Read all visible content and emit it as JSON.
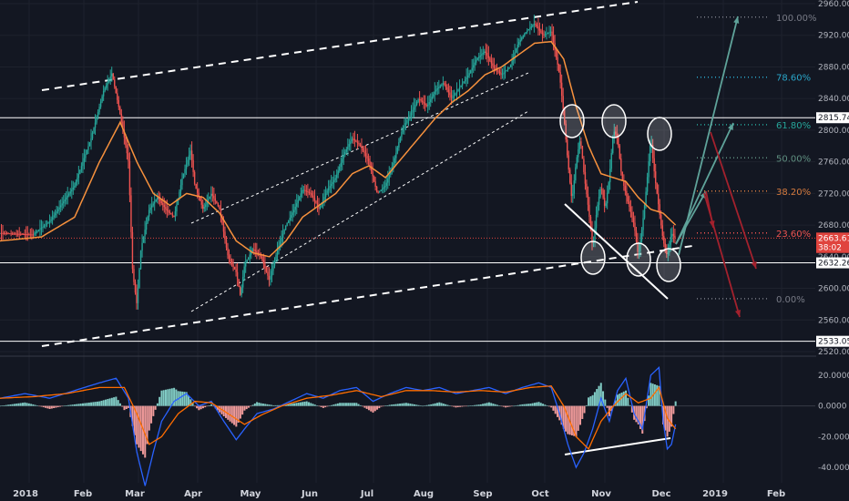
{
  "colors": {
    "background": "#131722",
    "up": "#26a69a",
    "down": "#ef5350",
    "ma": "#f7913d",
    "hline": "#ffffff",
    "price_line": "#e0443e",
    "macd": "#2962ff",
    "signal": "#ff6d00"
  },
  "chart_data": [
    {
      "type": "line",
      "title": "",
      "description": "Daily price chart with orange moving average, ascending channel, horizontal levels, Fibonacci retracement levels and projection arrows",
      "x_tick_labels": [
        "2018",
        "Feb",
        "Mar",
        "Apr",
        "May",
        "Jun",
        "Jul",
        "Aug",
        "Sep",
        "Oct",
        "Nov",
        "Dec",
        "2019",
        "Feb"
      ],
      "y_tick_labels": [
        "2960.00",
        "2920.00",
        "2880.00",
        "2840.00",
        "2800.00",
        "2760.00",
        "2720.00",
        "2680.00",
        "2640.00",
        "2600.00",
        "2560.00",
        "2520.00"
      ],
      "ylim": [
        2520,
        2960
      ],
      "price_path": [
        [
          0,
          2670
        ],
        [
          8,
          2668
        ],
        [
          12,
          2685
        ],
        [
          18,
          2730
        ],
        [
          22,
          2790
        ],
        [
          25,
          2850
        ],
        [
          27,
          2872
        ],
        [
          29,
          2820
        ],
        [
          31,
          2760
        ],
        [
          32,
          2620
        ],
        [
          33,
          2580
        ],
        [
          34,
          2650
        ],
        [
          36,
          2700
        ],
        [
          38,
          2715
        ],
        [
          40,
          2700
        ],
        [
          42,
          2690
        ],
        [
          44,
          2740
        ],
        [
          46,
          2775
        ],
        [
          47,
          2730
        ],
        [
          49,
          2700
        ],
        [
          51,
          2720
        ],
        [
          53,
          2700
        ],
        [
          55,
          2640
        ],
        [
          57,
          2620
        ],
        [
          58,
          2590
        ],
        [
          59,
          2630
        ],
        [
          61,
          2650
        ],
        [
          63,
          2640
        ],
        [
          65,
          2610
        ],
        [
          67,
          2650
        ],
        [
          69,
          2680
        ],
        [
          71,
          2700
        ],
        [
          73,
          2725
        ],
        [
          75,
          2720
        ],
        [
          77,
          2700
        ],
        [
          79,
          2725
        ],
        [
          81,
          2740
        ],
        [
          83,
          2770
        ],
        [
          85,
          2790
        ],
        [
          87,
          2780
        ],
        [
          89,
          2760
        ],
        [
          91,
          2720
        ],
        [
          93,
          2730
        ],
        [
          95,
          2760
        ],
        [
          97,
          2800
        ],
        [
          99,
          2820
        ],
        [
          101,
          2840
        ],
        [
          103,
          2830
        ],
        [
          105,
          2850
        ],
        [
          107,
          2860
        ],
        [
          109,
          2840
        ],
        [
          111,
          2855
        ],
        [
          113,
          2870
        ],
        [
          115,
          2890
        ],
        [
          117,
          2900
        ],
        [
          119,
          2880
        ],
        [
          121,
          2870
        ],
        [
          123,
          2880
        ],
        [
          125,
          2910
        ],
        [
          127,
          2925
        ],
        [
          129,
          2935
        ],
        [
          131,
          2920
        ],
        [
          133,
          2925
        ],
        [
          135,
          2870
        ],
        [
          136,
          2820
        ],
        [
          137,
          2760
        ],
        [
          138,
          2710
        ],
        [
          139,
          2760
        ],
        [
          140,
          2790
        ],
        [
          141,
          2740
        ],
        [
          142,
          2700
        ],
        [
          143,
          2650
        ],
        [
          144,
          2700
        ],
        [
          145,
          2730
        ],
        [
          146,
          2700
        ],
        [
          147,
          2740
        ],
        [
          148,
          2800
        ],
        [
          149,
          2790
        ],
        [
          150,
          2740
        ],
        [
          151,
          2720
        ],
        [
          152,
          2700
        ],
        [
          153,
          2680
        ],
        [
          154,
          2640
        ],
        [
          155,
          2680
        ],
        [
          156,
          2730
        ],
        [
          157,
          2790
        ],
        [
          158,
          2740
        ],
        [
          159,
          2700
        ],
        [
          160,
          2660
        ],
        [
          161,
          2640
        ],
        [
          162,
          2670
        ],
        [
          163,
          2663
        ]
      ],
      "ma_path": [
        [
          0,
          2660
        ],
        [
          10,
          2665
        ],
        [
          18,
          2690
        ],
        [
          24,
          2760
        ],
        [
          29,
          2810
        ],
        [
          33,
          2760
        ],
        [
          37,
          2720
        ],
        [
          41,
          2705
        ],
        [
          45,
          2720
        ],
        [
          49,
          2715
        ],
        [
          53,
          2695
        ],
        [
          57,
          2660
        ],
        [
          61,
          2645
        ],
        [
          65,
          2640
        ],
        [
          69,
          2660
        ],
        [
          73,
          2690
        ],
        [
          77,
          2705
        ],
        [
          81,
          2720
        ],
        [
          85,
          2745
        ],
        [
          89,
          2755
        ],
        [
          93,
          2740
        ],
        [
          97,
          2765
        ],
        [
          101,
          2790
        ],
        [
          105,
          2815
        ],
        [
          109,
          2835
        ],
        [
          113,
          2850
        ],
        [
          117,
          2870
        ],
        [
          121,
          2880
        ],
        [
          125,
          2895
        ],
        [
          129,
          2910
        ],
        [
          133,
          2912
        ],
        [
          136,
          2890
        ],
        [
          139,
          2830
        ],
        [
          142,
          2780
        ],
        [
          145,
          2745
        ],
        [
          148,
          2740
        ],
        [
          151,
          2735
        ],
        [
          154,
          2715
        ],
        [
          157,
          2700
        ],
        [
          160,
          2695
        ],
        [
          163,
          2680
        ]
      ],
      "horizontal_levels": [
        2815.74,
        2632.26,
        2533.05
      ],
      "price_line": 2663.61,
      "price_labels": [
        "2815.74",
        "2663.61",
        "38:02",
        "2632.26",
        "2533.05"
      ],
      "fibonacci": [
        {
          "ratio": "100.00%",
          "value": 2943,
          "color": "#787b86"
        },
        {
          "ratio": "78.60%",
          "value": 2867,
          "color": "#2aa6c9"
        },
        {
          "ratio": "61.80%",
          "value": 2807,
          "color": "#26a69a"
        },
        {
          "ratio": "50.00%",
          "value": 2765,
          "color": "#5f8f80"
        },
        {
          "ratio": "38.20%",
          "value": 2723,
          "color": "#d67b3f"
        },
        {
          "ratio": "23.60%",
          "value": 2670,
          "color": "#ef5350"
        },
        {
          "ratio": "0.00%",
          "value": 2587,
          "color": "#787b86"
        }
      ]
    },
    {
      "type": "line",
      "title": "",
      "description": "MACD oscillator with histogram",
      "y_tick_labels": [
        "20.0000",
        "0.0000",
        "-20.0000",
        "-40.0000"
      ],
      "ylim": [
        -50,
        30
      ],
      "macd_path": [
        [
          0,
          5
        ],
        [
          6,
          8
        ],
        [
          12,
          5
        ],
        [
          18,
          10
        ],
        [
          24,
          15
        ],
        [
          28,
          18
        ],
        [
          31,
          5
        ],
        [
          33,
          -30
        ],
        [
          35,
          -52
        ],
        [
          37,
          -30
        ],
        [
          39,
          -10
        ],
        [
          42,
          3
        ],
        [
          45,
          8
        ],
        [
          48,
          0
        ],
        [
          51,
          3
        ],
        [
          54,
          -10
        ],
        [
          57,
          -22
        ],
        [
          59,
          -15
        ],
        [
          62,
          -5
        ],
        [
          66,
          -2
        ],
        [
          70,
          3
        ],
        [
          74,
          8
        ],
        [
          78,
          5
        ],
        [
          82,
          10
        ],
        [
          86,
          12
        ],
        [
          90,
          3
        ],
        [
          94,
          8
        ],
        [
          98,
          12
        ],
        [
          102,
          10
        ],
        [
          106,
          12
        ],
        [
          110,
          8
        ],
        [
          114,
          10
        ],
        [
          118,
          12
        ],
        [
          122,
          8
        ],
        [
          126,
          12
        ],
        [
          130,
          15
        ],
        [
          133,
          12
        ],
        [
          135,
          -5
        ],
        [
          137,
          -25
        ],
        [
          139,
          -40
        ],
        [
          141,
          -30
        ],
        [
          143,
          -15
        ],
        [
          145,
          5
        ],
        [
          147,
          -10
        ],
        [
          149,
          10
        ],
        [
          151,
          18
        ],
        [
          153,
          -5
        ],
        [
          155,
          -15
        ],
        [
          157,
          20
        ],
        [
          159,
          25
        ],
        [
          160,
          -10
        ],
        [
          161,
          -28
        ],
        [
          162,
          -25
        ],
        [
          163,
          -12
        ]
      ],
      "signal_path": [
        [
          0,
          5
        ],
        [
          8,
          6
        ],
        [
          16,
          8
        ],
        [
          24,
          12
        ],
        [
          30,
          12
        ],
        [
          33,
          -5
        ],
        [
          36,
          -25
        ],
        [
          39,
          -20
        ],
        [
          43,
          -5
        ],
        [
          47,
          3
        ],
        [
          51,
          2
        ],
        [
          55,
          -5
        ],
        [
          59,
          -12
        ],
        [
          63,
          -6
        ],
        [
          68,
          0
        ],
        [
          74,
          5
        ],
        [
          80,
          7
        ],
        [
          86,
          10
        ],
        [
          92,
          6
        ],
        [
          98,
          10
        ],
        [
          104,
          10
        ],
        [
          110,
          9
        ],
        [
          116,
          10
        ],
        [
          122,
          9
        ],
        [
          128,
          12
        ],
        [
          133,
          13
        ],
        [
          136,
          0
        ],
        [
          139,
          -20
        ],
        [
          142,
          -28
        ],
        [
          145,
          -10
        ],
        [
          148,
          0
        ],
        [
          151,
          8
        ],
        [
          154,
          2
        ],
        [
          157,
          5
        ],
        [
          159,
          12
        ],
        [
          161,
          -8
        ],
        [
          163,
          -15
        ]
      ]
    }
  ]
}
